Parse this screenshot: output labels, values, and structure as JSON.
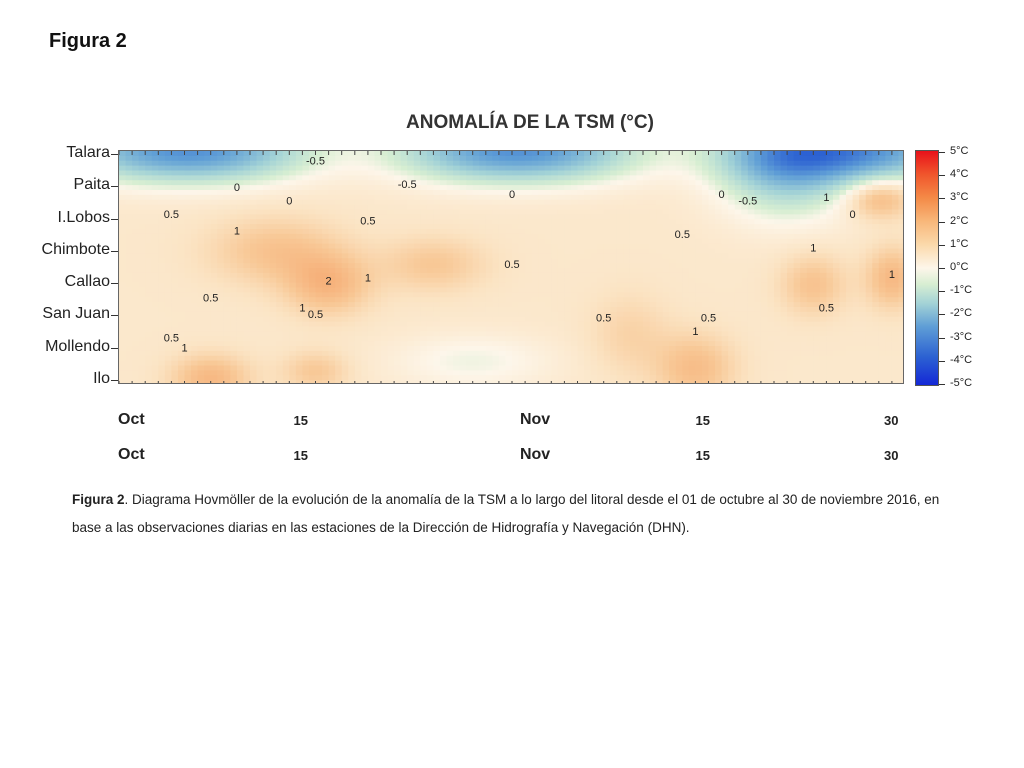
{
  "slide": {
    "title": "Figura 2"
  },
  "figure": {
    "caption_label": "Figura 2",
    "caption_text": ". Diagrama Hovmöller de la evolución de la anomalía de la TSM a lo largo del litoral desde el 01 de octubre al 30 de noviembre 2016, en base a las observaciones diarias en las estaciones de la Dirección de Hidrografía y Navegación (DHN)."
  },
  "chart_data": {
    "type": "heatmap",
    "title": "ANOMALÍA DE LA TSM (°C)",
    "ylabel": "",
    "xlabel": "",
    "y_categories": [
      "Talara",
      "Paita",
      "I.Lobos",
      "Chimbote",
      "Callao",
      "San Juan",
      "Mollendo",
      "Ilo"
    ],
    "x_tick_labels_row1": [
      "Oct",
      "15",
      "Nov",
      "15",
      "30"
    ],
    "x_tick_labels_row2": [
      "Oct",
      "15",
      "Nov",
      "15",
      "30"
    ],
    "x_tick_days": [
      1,
      15,
      32,
      46,
      61
    ],
    "x_range_days": [
      1,
      61
    ],
    "colorbar": {
      "labels": [
        "5°C",
        "4°C",
        "3°C",
        "2°C",
        "1°C",
        "0°C",
        "-1°C",
        "-2°C",
        "-3°C",
        "-4°C",
        "-5°C"
      ],
      "range": [
        -5,
        5
      ],
      "colors": {
        "max": "#e8121a",
        "zero": "#fdf6ea",
        "min": "#1428d6"
      }
    },
    "contour_labels": [
      {
        "text": "0",
        "day": 10,
        "station": 1.2
      },
      {
        "text": "-0.5",
        "day": 16,
        "station": 0.4
      },
      {
        "text": "0.5",
        "day": 5,
        "station": 2.0
      },
      {
        "text": "1",
        "day": 10,
        "station": 2.5
      },
      {
        "text": "0",
        "day": 14,
        "station": 1.6
      },
      {
        "text": "0.5",
        "day": 20,
        "station": 2.2
      },
      {
        "text": "-0.5",
        "day": 23,
        "station": 1.1
      },
      {
        "text": "1",
        "day": 20,
        "station": 3.9
      },
      {
        "text": "2",
        "day": 17,
        "station": 4.0
      },
      {
        "text": "0.5",
        "day": 8,
        "station": 4.5
      },
      {
        "text": "0.5",
        "day": 16,
        "station": 5.0
      },
      {
        "text": "1",
        "day": 15,
        "station": 4.8
      },
      {
        "text": "0.5",
        "day": 5,
        "station": 5.7
      },
      {
        "text": "1",
        "day": 6,
        "station": 6.0
      },
      {
        "text": "0.5",
        "day": 31,
        "station": 3.5
      },
      {
        "text": "0",
        "day": 31,
        "station": 1.4
      },
      {
        "text": "0.5",
        "day": 38,
        "station": 5.1
      },
      {
        "text": "0.5",
        "day": 44,
        "station": 2.6
      },
      {
        "text": "0",
        "day": 47,
        "station": 1.4
      },
      {
        "text": "-0.5",
        "day": 49,
        "station": 1.6
      },
      {
        "text": "0.5",
        "day": 46,
        "station": 5.1
      },
      {
        "text": "1",
        "day": 45,
        "station": 5.5
      },
      {
        "text": "1",
        "day": 54,
        "station": 3.0
      },
      {
        "text": "0.5",
        "day": 55,
        "station": 4.8
      },
      {
        "text": "0",
        "day": 57,
        "station": 2.0
      },
      {
        "text": "1",
        "day": 55,
        "station": 1.5
      },
      {
        "text": "1",
        "day": 60,
        "station": 3.8
      }
    ]
  }
}
